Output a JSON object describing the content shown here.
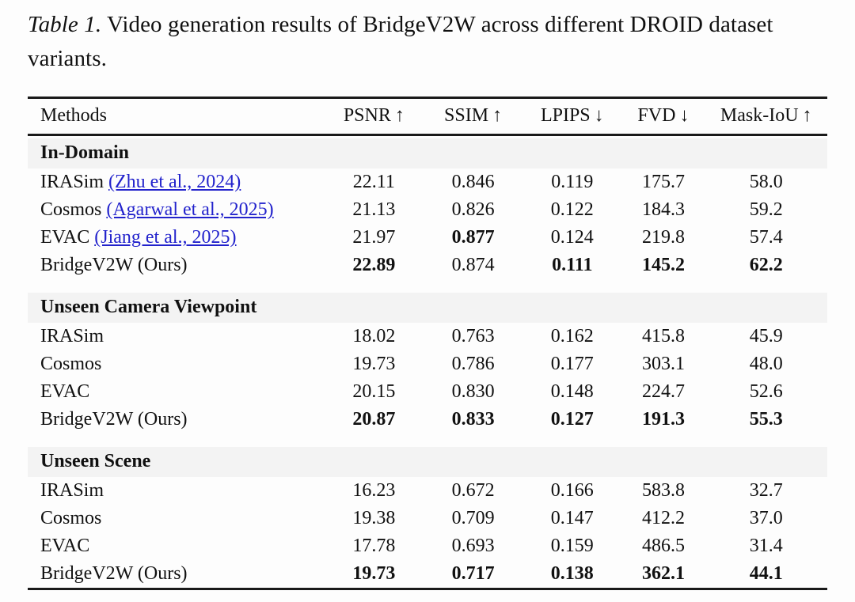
{
  "caption": {
    "label": "Table 1.",
    "text": "Video generation results of BridgeV2W across different DROID dataset variants."
  },
  "colors": {
    "link": "#2222CC",
    "band": "#f3f3f3",
    "rule": "#1a1a1a"
  },
  "table": {
    "columns": [
      {
        "label": "Methods",
        "arrow": "",
        "align": "left"
      },
      {
        "label": "PSNR",
        "arrow": "↑",
        "align": "center"
      },
      {
        "label": "SSIM",
        "arrow": "↑",
        "align": "center"
      },
      {
        "label": "LPIPS",
        "arrow": "↓",
        "align": "center"
      },
      {
        "label": "FVD",
        "arrow": "↓",
        "align": "center"
      },
      {
        "label": "Mask-IoU",
        "arrow": "↑",
        "align": "center"
      }
    ],
    "sections": [
      {
        "header": "In-Domain",
        "rows": [
          {
            "method": "IRASim",
            "citation": "(Zhu et al., 2024)",
            "values": [
              {
                "t": "22.11",
                "b": false
              },
              {
                "t": "0.846",
                "b": false
              },
              {
                "t": "0.119",
                "b": false
              },
              {
                "t": "175.7",
                "b": false
              },
              {
                "t": "58.0",
                "b": false
              }
            ]
          },
          {
            "method": "Cosmos",
            "citation": "(Agarwal et al., 2025)",
            "values": [
              {
                "t": "21.13",
                "b": false
              },
              {
                "t": "0.826",
                "b": false
              },
              {
                "t": "0.122",
                "b": false
              },
              {
                "t": "184.3",
                "b": false
              },
              {
                "t": "59.2",
                "b": false
              }
            ]
          },
          {
            "method": "EVAC",
            "citation": "(Jiang et al., 2025)",
            "values": [
              {
                "t": "21.97",
                "b": false
              },
              {
                "t": "0.877",
                "b": true
              },
              {
                "t": "0.124",
                "b": false
              },
              {
                "t": "219.8",
                "b": false
              },
              {
                "t": "57.4",
                "b": false
              }
            ]
          },
          {
            "method": "BridgeV2W (Ours)",
            "citation": "",
            "values": [
              {
                "t": "22.89",
                "b": true
              },
              {
                "t": "0.874",
                "b": false
              },
              {
                "t": "0.111",
                "b": true
              },
              {
                "t": "145.2",
                "b": true
              },
              {
                "t": "62.2",
                "b": true
              }
            ]
          }
        ]
      },
      {
        "header": "Unseen Camera Viewpoint",
        "rows": [
          {
            "method": "IRASim",
            "citation": "",
            "values": [
              {
                "t": "18.02",
                "b": false
              },
              {
                "t": "0.763",
                "b": false
              },
              {
                "t": "0.162",
                "b": false
              },
              {
                "t": "415.8",
                "b": false
              },
              {
                "t": "45.9",
                "b": false
              }
            ]
          },
          {
            "method": "Cosmos",
            "citation": "",
            "values": [
              {
                "t": "19.73",
                "b": false
              },
              {
                "t": "0.786",
                "b": false
              },
              {
                "t": "0.177",
                "b": false
              },
              {
                "t": "303.1",
                "b": false
              },
              {
                "t": "48.0",
                "b": false
              }
            ]
          },
          {
            "method": "EVAC",
            "citation": "",
            "values": [
              {
                "t": "20.15",
                "b": false
              },
              {
                "t": "0.830",
                "b": false
              },
              {
                "t": "0.148",
                "b": false
              },
              {
                "t": "224.7",
                "b": false
              },
              {
                "t": "52.6",
                "b": false
              }
            ]
          },
          {
            "method": "BridgeV2W (Ours)",
            "citation": "",
            "values": [
              {
                "t": "20.87",
                "b": true
              },
              {
                "t": "0.833",
                "b": true
              },
              {
                "t": "0.127",
                "b": true
              },
              {
                "t": "191.3",
                "b": true
              },
              {
                "t": "55.3",
                "b": true
              }
            ]
          }
        ]
      },
      {
        "header": "Unseen Scene",
        "rows": [
          {
            "method": "IRASim",
            "citation": "",
            "values": [
              {
                "t": "16.23",
                "b": false
              },
              {
                "t": "0.672",
                "b": false
              },
              {
                "t": "0.166",
                "b": false
              },
              {
                "t": "583.8",
                "b": false
              },
              {
                "t": "32.7",
                "b": false
              }
            ]
          },
          {
            "method": "Cosmos",
            "citation": "",
            "values": [
              {
                "t": "19.38",
                "b": false
              },
              {
                "t": "0.709",
                "b": false
              },
              {
                "t": "0.147",
                "b": false
              },
              {
                "t": "412.2",
                "b": false
              },
              {
                "t": "37.0",
                "b": false
              }
            ]
          },
          {
            "method": "EVAC",
            "citation": "",
            "values": [
              {
                "t": "17.78",
                "b": false
              },
              {
                "t": "0.693",
                "b": false
              },
              {
                "t": "0.159",
                "b": false
              },
              {
                "t": "486.5",
                "b": false
              },
              {
                "t": "31.4",
                "b": false
              }
            ]
          },
          {
            "method": "BridgeV2W (Ours)",
            "citation": "",
            "values": [
              {
                "t": "19.73",
                "b": true
              },
              {
                "t": "0.717",
                "b": true
              },
              {
                "t": "0.138",
                "b": true
              },
              {
                "t": "362.1",
                "b": true
              },
              {
                "t": "44.1",
                "b": true
              }
            ]
          }
        ]
      }
    ]
  }
}
